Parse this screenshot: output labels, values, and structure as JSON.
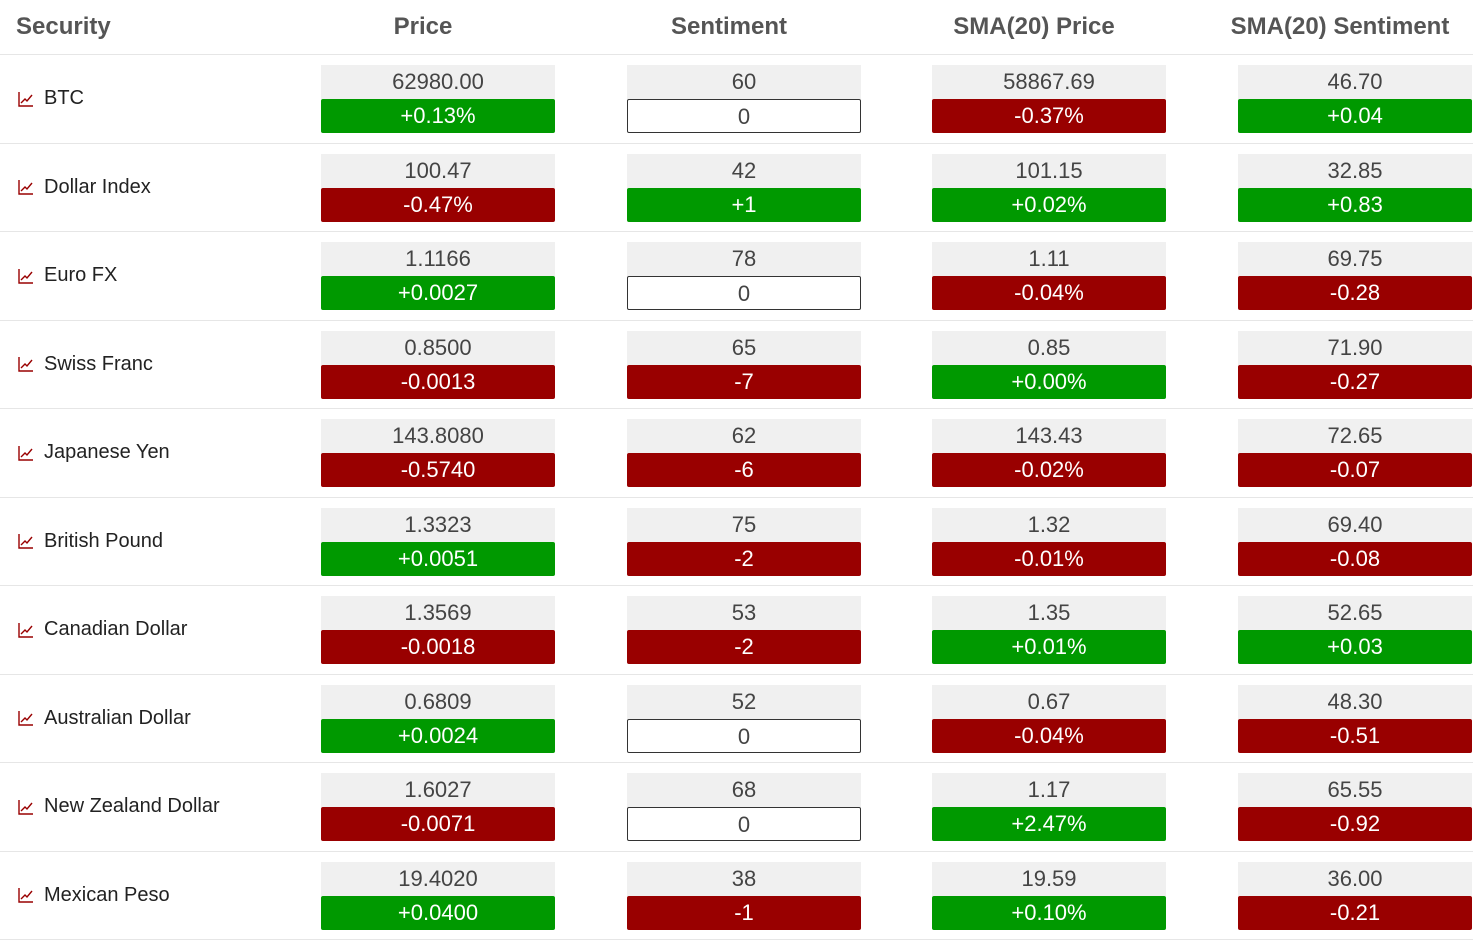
{
  "headers": {
    "security": "Security",
    "price": "Price",
    "sentiment": "Sentiment",
    "sma_price": "SMA(20) Price",
    "sma_sentiment": "SMA(20) Sentiment"
  },
  "colors": {
    "up": "#009900",
    "down": "#990000",
    "value_bg": "#f0f0f0",
    "icon": "#990000"
  },
  "icon": "chart-trend-icon",
  "rows": [
    {
      "name": "BTC",
      "price": "62980.00",
      "price_chg": "+0.13%",
      "price_dir": "up",
      "sent": "60",
      "sent_chg": "0",
      "sent_dir": "flat",
      "sma_price": "58867.69",
      "sma_price_chg": "-0.37%",
      "sma_price_dir": "down",
      "sma_sent": "46.70",
      "sma_sent_chg": "+0.04",
      "sma_sent_dir": "up"
    },
    {
      "name": "Dollar Index",
      "price": "100.47",
      "price_chg": "-0.47%",
      "price_dir": "down",
      "sent": "42",
      "sent_chg": "+1",
      "sent_dir": "up",
      "sma_price": "101.15",
      "sma_price_chg": "+0.02%",
      "sma_price_dir": "up",
      "sma_sent": "32.85",
      "sma_sent_chg": "+0.83",
      "sma_sent_dir": "up"
    },
    {
      "name": "Euro FX",
      "price": "1.1166",
      "price_chg": "+0.0027",
      "price_dir": "up",
      "sent": "78",
      "sent_chg": "0",
      "sent_dir": "flat",
      "sma_price": "1.11",
      "sma_price_chg": "-0.04%",
      "sma_price_dir": "down",
      "sma_sent": "69.75",
      "sma_sent_chg": "-0.28",
      "sma_sent_dir": "down"
    },
    {
      "name": "Swiss Franc",
      "price": "0.8500",
      "price_chg": "-0.0013",
      "price_dir": "down",
      "sent": "65",
      "sent_chg": "-7",
      "sent_dir": "down",
      "sma_price": "0.85",
      "sma_price_chg": "+0.00%",
      "sma_price_dir": "up",
      "sma_sent": "71.90",
      "sma_sent_chg": "-0.27",
      "sma_sent_dir": "down"
    },
    {
      "name": "Japanese Yen",
      "price": "143.8080",
      "price_chg": "-0.5740",
      "price_dir": "down",
      "sent": "62",
      "sent_chg": "-6",
      "sent_dir": "down",
      "sma_price": "143.43",
      "sma_price_chg": "-0.02%",
      "sma_price_dir": "down",
      "sma_sent": "72.65",
      "sma_sent_chg": "-0.07",
      "sma_sent_dir": "down"
    },
    {
      "name": "British Pound",
      "price": "1.3323",
      "price_chg": "+0.0051",
      "price_dir": "up",
      "sent": "75",
      "sent_chg": "-2",
      "sent_dir": "down",
      "sma_price": "1.32",
      "sma_price_chg": "-0.01%",
      "sma_price_dir": "down",
      "sma_sent": "69.40",
      "sma_sent_chg": "-0.08",
      "sma_sent_dir": "down"
    },
    {
      "name": "Canadian Dollar",
      "price": "1.3569",
      "price_chg": "-0.0018",
      "price_dir": "down",
      "sent": "53",
      "sent_chg": "-2",
      "sent_dir": "down",
      "sma_price": "1.35",
      "sma_price_chg": "+0.01%",
      "sma_price_dir": "up",
      "sma_sent": "52.65",
      "sma_sent_chg": "+0.03",
      "sma_sent_dir": "up"
    },
    {
      "name": "Australian Dollar",
      "price": "0.6809",
      "price_chg": "+0.0024",
      "price_dir": "up",
      "sent": "52",
      "sent_chg": "0",
      "sent_dir": "flat",
      "sma_price": "0.67",
      "sma_price_chg": "-0.04%",
      "sma_price_dir": "down",
      "sma_sent": "48.30",
      "sma_sent_chg": "-0.51",
      "sma_sent_dir": "down"
    },
    {
      "name": "New Zealand Dollar",
      "price": "1.6027",
      "price_chg": "-0.0071",
      "price_dir": "down",
      "sent": "68",
      "sent_chg": "0",
      "sent_dir": "flat",
      "sma_price": "1.17",
      "sma_price_chg": "+2.47%",
      "sma_price_dir": "up",
      "sma_sent": "65.55",
      "sma_sent_chg": "-0.92",
      "sma_sent_dir": "down"
    },
    {
      "name": "Mexican Peso",
      "price": "19.4020",
      "price_chg": "+0.0400",
      "price_dir": "up",
      "sent": "38",
      "sent_chg": "-1",
      "sent_dir": "down",
      "sma_price": "19.59",
      "sma_price_chg": "+0.10%",
      "sma_price_dir": "up",
      "sma_sent": "36.00",
      "sma_sent_chg": "-0.21",
      "sma_sent_dir": "down"
    }
  ]
}
